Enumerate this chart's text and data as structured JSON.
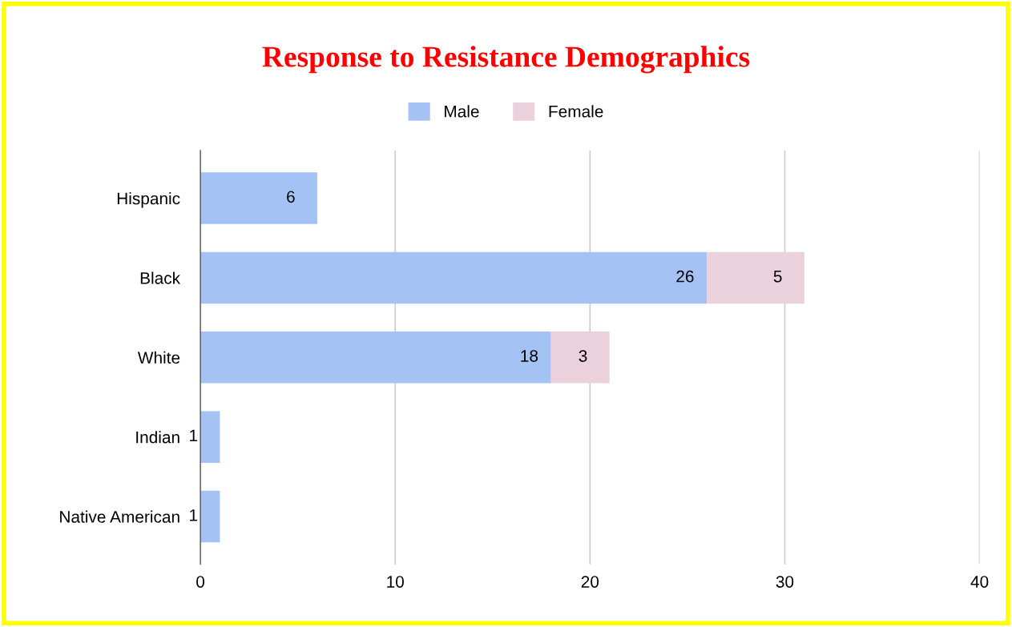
{
  "chart_data": {
    "type": "bar",
    "orientation": "horizontal",
    "stacked": true,
    "title": "Response to Resistance Demographics",
    "categories": [
      "Hispanic",
      "Black",
      "White",
      "Indian",
      "Native American"
    ],
    "series": [
      {
        "name": "Male",
        "color": "#a4c2f4",
        "values": [
          6,
          26,
          18,
          1,
          1
        ],
        "value_labels": [
          "6",
          "26",
          "18",
          "1",
          "1"
        ]
      },
      {
        "name": "Female",
        "color": "#ead1dc",
        "values": [
          0,
          5,
          3,
          0,
          0
        ],
        "value_labels": [
          null,
          "5",
          "3",
          null,
          null
        ]
      }
    ],
    "xlim": [
      0,
      40
    ],
    "xticks": [
      0,
      10,
      20,
      30,
      40
    ],
    "grid": "x",
    "legend": "top"
  }
}
